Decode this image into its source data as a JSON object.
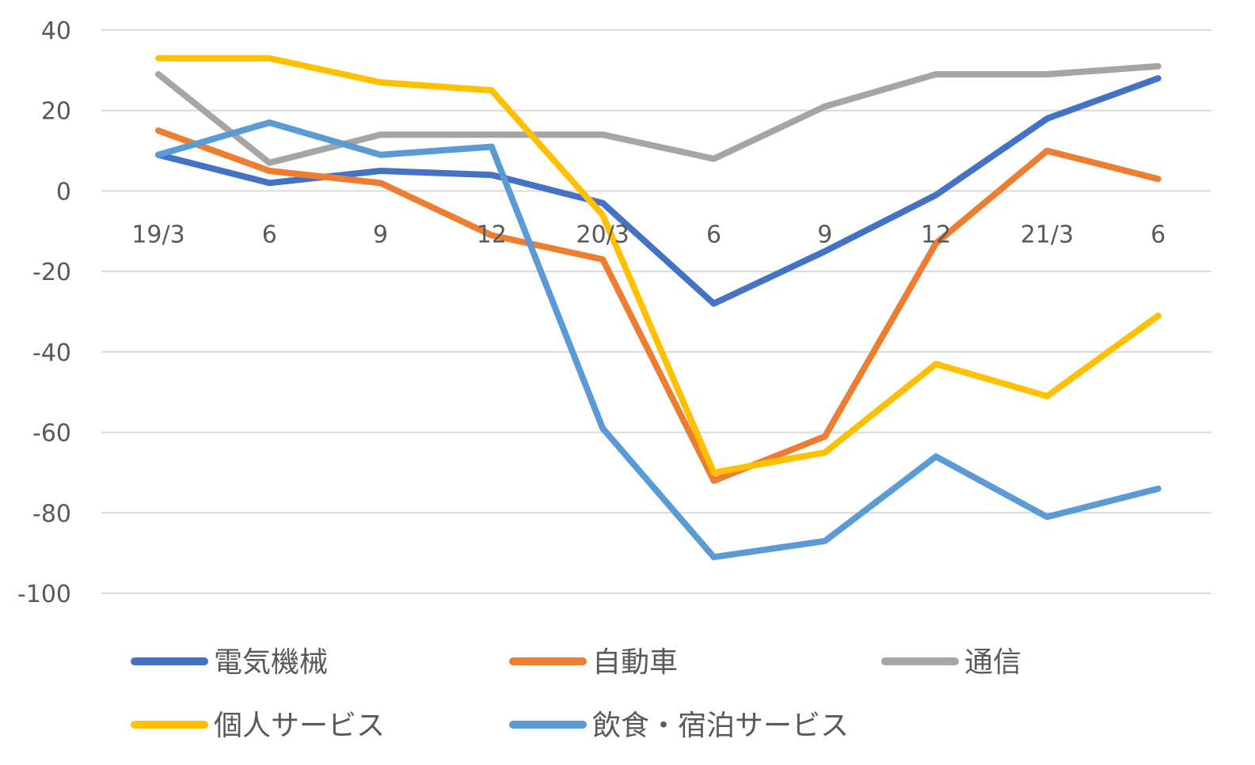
{
  "chart_data": {
    "type": "line",
    "categories": [
      "19/3",
      "6",
      "9",
      "12",
      "20/3",
      "6",
      "9",
      "12",
      "21/3",
      "6"
    ],
    "ylim": [
      -100,
      40
    ],
    "yticks": [
      40,
      20,
      0,
      -20,
      -40,
      -60,
      -80,
      -100
    ],
    "ytick_labels": [
      "40",
      "20",
      "0",
      "-20",
      "-40",
      "-60",
      "-80",
      "-100"
    ],
    "grid": true,
    "legend_position": "bottom",
    "series": [
      {
        "name": "電気機械",
        "color": "#4472C4",
        "values": [
          9,
          2,
          5,
          4,
          -3,
          -28,
          -15,
          -1,
          18,
          28
        ]
      },
      {
        "name": "自動車",
        "color": "#ED7D31",
        "values": [
          15,
          5,
          2,
          -11,
          -17,
          -72,
          -61,
          -13,
          10,
          3
        ]
      },
      {
        "name": "通信",
        "color": "#A5A5A5",
        "values": [
          29,
          7,
          14,
          14,
          14,
          8,
          21,
          29,
          29,
          31
        ]
      },
      {
        "name": "個人サービス",
        "color": "#FFC000",
        "values": [
          33,
          33,
          27,
          25,
          -6,
          -70,
          -65,
          -43,
          -51,
          -31
        ]
      },
      {
        "name": "飲食・宿泊サービス",
        "color": "#5B9BD5",
        "values": [
          9,
          17,
          9,
          11,
          -59,
          -91,
          -87,
          -66,
          -81,
          -74
        ]
      }
    ]
  }
}
